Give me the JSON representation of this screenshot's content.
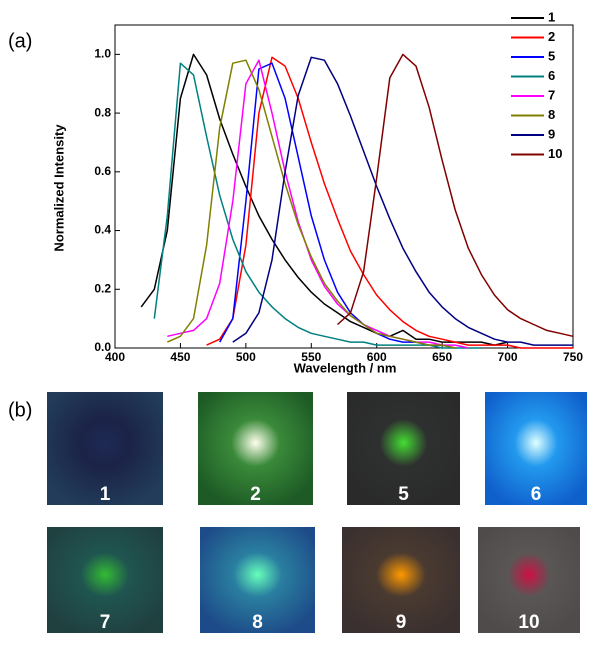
{
  "panel_a_label": "(a)",
  "chart_data": {
    "type": "line",
    "x_label": "Wavelength / nm",
    "y_label": "Normalized Intensity",
    "x": [
      410,
      420,
      430,
      440,
      450,
      460,
      470,
      480,
      490,
      500,
      510,
      520,
      530,
      540,
      550,
      560,
      570,
      580,
      590,
      600,
      610,
      620,
      630,
      640,
      650,
      660,
      670,
      680,
      690,
      700,
      710,
      720,
      730,
      740,
      750
    ],
    "series": [
      {
        "name": "1",
        "color": "#000000",
        "values": [
          null,
          0.14,
          0.2,
          0.4,
          0.85,
          1.0,
          0.93,
          0.78,
          0.66,
          0.55,
          0.45,
          0.37,
          0.3,
          0.24,
          0.19,
          0.15,
          0.12,
          0.09,
          0.07,
          0.05,
          0.04,
          0.06,
          0.03,
          0.03,
          0.02,
          0.02,
          0.02,
          0.02,
          0.01,
          0.02,
          null,
          null,
          null,
          null,
          null
        ]
      },
      {
        "name": "2",
        "color": "#ff0000",
        "values": [
          null,
          null,
          null,
          null,
          null,
          null,
          0.01,
          0.03,
          0.1,
          0.35,
          0.8,
          0.99,
          0.96,
          0.85,
          0.7,
          0.56,
          0.44,
          0.33,
          0.25,
          0.18,
          0.13,
          0.09,
          0.06,
          0.04,
          0.03,
          0.02,
          0.01,
          0.01,
          0.01,
          0.01,
          0.0,
          0.0,
          0.0,
          0.0,
          0.0
        ]
      },
      {
        "name": "5",
        "color": "#0000ff",
        "values": [
          null,
          null,
          null,
          null,
          null,
          null,
          null,
          0.02,
          0.1,
          0.5,
          0.95,
          0.97,
          0.85,
          0.65,
          0.45,
          0.3,
          0.19,
          0.12,
          0.08,
          0.05,
          0.03,
          0.02,
          0.02,
          0.01,
          0.01,
          0.0,
          null,
          null,
          null,
          null,
          null,
          null,
          null,
          null,
          null
        ]
      },
      {
        "name": "6",
        "color": "#008080",
        "values": [
          null,
          null,
          0.1,
          0.45,
          0.97,
          0.93,
          0.72,
          0.52,
          0.37,
          0.26,
          0.19,
          0.14,
          0.1,
          0.07,
          0.05,
          0.04,
          0.03,
          0.02,
          0.02,
          0.01,
          0.01,
          0.01,
          0.01,
          0.01,
          0.0,
          0.0,
          0.0,
          0.0,
          null,
          null,
          null,
          null,
          null,
          null,
          null
        ]
      },
      {
        "name": "7",
        "color": "#ff00ff",
        "values": [
          null,
          null,
          null,
          0.04,
          0.05,
          0.06,
          0.1,
          0.22,
          0.5,
          0.9,
          0.98,
          0.8,
          0.6,
          0.43,
          0.3,
          0.21,
          0.15,
          0.11,
          0.08,
          0.06,
          0.04,
          0.03,
          0.02,
          0.02,
          0.01,
          0.01,
          0.0,
          null,
          null,
          null,
          null,
          null,
          null,
          null,
          null
        ]
      },
      {
        "name": "8",
        "color": "#808000",
        "values": [
          null,
          null,
          null,
          0.02,
          0.04,
          0.1,
          0.35,
          0.75,
          0.97,
          0.98,
          0.88,
          0.72,
          0.56,
          0.42,
          0.31,
          0.22,
          0.16,
          0.11,
          0.08,
          0.05,
          0.04,
          0.03,
          0.02,
          0.01,
          0.01,
          0.0,
          null,
          null,
          null,
          null,
          null,
          null,
          null,
          null,
          null
        ]
      },
      {
        "name": "9",
        "color": "#000080",
        "values": [
          null,
          null,
          null,
          null,
          null,
          null,
          null,
          null,
          0.02,
          0.05,
          0.12,
          0.3,
          0.6,
          0.86,
          0.99,
          0.98,
          0.9,
          0.79,
          0.67,
          0.55,
          0.44,
          0.34,
          0.26,
          0.19,
          0.14,
          0.1,
          0.07,
          0.05,
          0.03,
          0.02,
          0.02,
          0.01,
          0.01,
          0.01,
          0.01
        ]
      },
      {
        "name": "10",
        "color": "#800000",
        "values": [
          null,
          null,
          null,
          null,
          null,
          null,
          null,
          null,
          null,
          null,
          null,
          null,
          null,
          null,
          null,
          null,
          0.08,
          0.12,
          0.26,
          0.58,
          0.92,
          1.0,
          0.96,
          0.82,
          0.64,
          0.47,
          0.34,
          0.25,
          0.18,
          0.13,
          0.1,
          0.08,
          0.06,
          0.05,
          0.04
        ]
      }
    ],
    "xlim": [
      400,
      750
    ],
    "xticks": [
      400,
      450,
      500,
      550,
      600,
      650,
      700,
      750
    ],
    "ylim": [
      0,
      1.1
    ],
    "yticks": [
      {
        "value": 0,
        "label": "0.0"
      },
      0.2,
      0.4,
      0.6,
      0.8,
      {
        "value": 1,
        "label": "1.0"
      }
    ],
    "legend": "upper right"
  },
  "panel_b": {
    "label": "(b)",
    "samples": [
      "1",
      "2",
      "5",
      "6",
      "7",
      "8",
      "9",
      "10"
    ]
  }
}
